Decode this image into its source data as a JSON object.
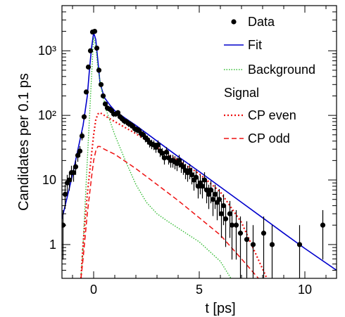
{
  "chart_data": {
    "type": "scatter",
    "title": "",
    "xlabel": "t [ps]",
    "ylabel": "Candidates per 0.1 ps",
    "xlim": [
      -1.5,
      11.5
    ],
    "ylim": [
      0.3,
      5000
    ],
    "yscale": "log",
    "grid": false,
    "x_ticks": [
      0,
      5,
      10
    ],
    "x_tick_labels": [
      "0",
      "5",
      "10"
    ],
    "y_ticks": [
      1,
      10,
      100,
      1000
    ],
    "y_tick_labels": [
      "1",
      "10",
      "10²",
      "10³"
    ],
    "legend_position": "top-right",
    "legend": {
      "data_label": "Data",
      "fit_label": "Fit",
      "background_label": "Background",
      "signal_header": "Signal",
      "cp_even_label": "CP even",
      "cp_odd_label": "CP odd"
    },
    "colors": {
      "data": "#000000",
      "fit": "#0000cc",
      "background": "#33bb33",
      "cp_even": "#ee1111",
      "cp_odd": "#ee1111"
    },
    "series": [
      {
        "name": "Data",
        "kind": "points",
        "x": [
          -1.45,
          -1.35,
          -1.25,
          -1.15,
          -1.05,
          -0.95,
          -0.85,
          -0.75,
          -0.65,
          -0.55,
          -0.45,
          -0.35,
          -0.25,
          -0.15,
          -0.05,
          0.05,
          0.15,
          0.25,
          0.35,
          0.45,
          0.55,
          0.65,
          0.75,
          0.85,
          0.95,
          1.05,
          1.15,
          1.25,
          1.35,
          1.45,
          1.55,
          1.65,
          1.75,
          1.85,
          1.95,
          2.05,
          2.15,
          2.25,
          2.35,
          2.45,
          2.55,
          2.65,
          2.75,
          2.85,
          2.95,
          3.05,
          3.15,
          3.25,
          3.35,
          3.45,
          3.55,
          3.65,
          3.75,
          3.85,
          3.95,
          4.05,
          4.15,
          4.25,
          4.35,
          4.45,
          4.55,
          4.65,
          4.75,
          4.85,
          4.95,
          5.05,
          5.15,
          5.25,
          5.35,
          5.45,
          5.55,
          5.65,
          5.75,
          5.85,
          5.95,
          6.05,
          6.15,
          6.25,
          6.45,
          6.55,
          6.75,
          6.95,
          7.25,
          7.55,
          8.05,
          8.45,
          9.75,
          10.85
        ],
        "y": [
          2,
          6,
          9,
          10,
          13,
          13,
          16,
          24,
          28,
          48,
          95,
          230,
          560,
          1000,
          1950,
          2000,
          1100,
          500,
          300,
          200,
          150,
          130,
          125,
          118,
          105,
          105,
          110,
          95,
          88,
          82,
          80,
          75,
          72,
          68,
          62,
          60,
          58,
          52,
          50,
          45,
          42,
          38,
          36,
          35,
          32,
          35,
          28,
          26,
          22,
          27,
          22,
          20,
          20,
          19,
          18,
          20,
          17,
          16,
          14,
          13,
          14,
          12,
          10,
          11,
          8,
          9,
          8,
          10,
          7,
          6,
          7,
          5,
          6,
          4.5,
          5,
          3,
          4,
          2.5,
          3,
          2,
          2,
          1.5,
          1.2,
          1,
          1.5,
          1,
          1,
          2
        ]
      },
      {
        "name": "Fit",
        "kind": "line",
        "x": [
          -1.5,
          -1,
          -0.5,
          -0.3,
          -0.2,
          -0.1,
          0,
          0.1,
          0.2,
          0.3,
          0.5,
          0.8,
          1,
          1.5,
          2,
          3,
          4,
          5,
          6,
          7,
          8,
          9,
          10,
          11.5
        ],
        "y": [
          2.5,
          12,
          70,
          200,
          500,
          1100,
          1900,
          1500,
          700,
          320,
          190,
          140,
          118,
          90,
          70,
          40,
          23,
          13.5,
          7.8,
          4.5,
          2.6,
          1.5,
          0.87,
          0.4
        ]
      },
      {
        "name": "Background",
        "kind": "line",
        "x": [
          -0.6,
          -0.5,
          -0.3,
          -0.1,
          0,
          0.1,
          0.2,
          0.4,
          0.6,
          1,
          1.5,
          2,
          2.5,
          3,
          3.5,
          4,
          5,
          6,
          6.5
        ],
        "y": [
          0.3,
          1,
          20,
          400,
          1600,
          1200,
          520,
          230,
          120,
          50,
          20,
          8.5,
          4.5,
          3,
          2.3,
          1.8,
          1.1,
          0.55,
          0.3
        ]
      },
      {
        "name": "CP even",
        "kind": "line",
        "x": [
          -0.6,
          -0.5,
          -0.3,
          -0.1,
          0,
          0.1,
          0.2,
          0.3,
          0.5,
          1,
          2,
          3,
          4,
          5,
          6,
          7,
          8.2
        ],
        "y": [
          0.3,
          1,
          6,
          25,
          50,
          85,
          105,
          110,
          100,
          80,
          52,
          32,
          20,
          12.5,
          6.5,
          2.2,
          0.3
        ]
      },
      {
        "name": "CP odd",
        "kind": "line",
        "x": [
          -0.6,
          -0.5,
          -0.3,
          -0.1,
          0,
          0.1,
          0.2,
          0.3,
          0.5,
          1,
          2,
          3,
          4,
          5,
          6,
          7,
          7.8
        ],
        "y": [
          0.3,
          0.6,
          3,
          11,
          20,
          28,
          33,
          33,
          30,
          25,
          15,
          8.5,
          4.8,
          2.6,
          1.4,
          0.6,
          0.3
        ]
      }
    ]
  }
}
